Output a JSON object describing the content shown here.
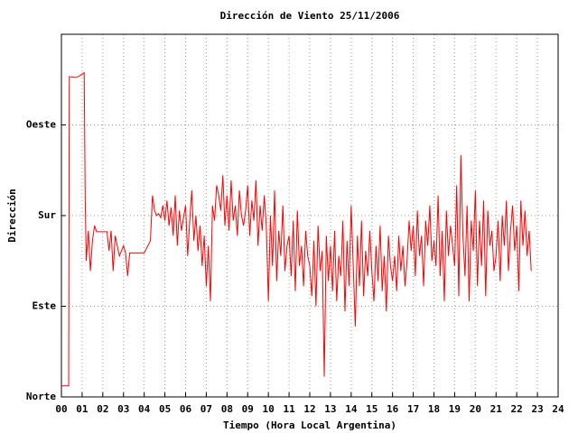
{
  "chart_data": {
    "type": "line",
    "title": "Dirección de Viento 25/11/2006",
    "x_label": "Tiempo (Hora Local Argentina)",
    "y_label": "Dirección",
    "xlim": [
      0,
      24
    ],
    "ylim": [
      0,
      360
    ],
    "grid": true,
    "xticks": [
      {
        "value": 0,
        "label": "00"
      },
      {
        "value": 1,
        "label": "01"
      },
      {
        "value": 2,
        "label": "02"
      },
      {
        "value": 3,
        "label": "03"
      },
      {
        "value": 4,
        "label": "04"
      },
      {
        "value": 5,
        "label": "05"
      },
      {
        "value": 6,
        "label": "06"
      },
      {
        "value": 7,
        "label": "07"
      },
      {
        "value": 8,
        "label": "08"
      },
      {
        "value": 9,
        "label": "09"
      },
      10,
      11,
      12,
      13,
      14,
      15,
      16,
      17,
      18,
      19,
      20,
      21,
      22,
      23,
      24
    ],
    "yticks": [
      {
        "value": 0,
        "label": "Norte"
      },
      {
        "value": 90,
        "label": "Este"
      },
      {
        "value": 180,
        "label": "Sur"
      },
      {
        "value": 270,
        "label": "Oeste"
      }
    ],
    "color": "#ff0000",
    "x": [
      0,
      0.35,
      0.38,
      0.7,
      0.9,
      1.1,
      1.15,
      1.2,
      1.3,
      1.4,
      1.5,
      1.6,
      1.7,
      2.2,
      2.3,
      2.4,
      2.5,
      2.6,
      2.8,
      3.0,
      3.1,
      3.2,
      3.3,
      3.5,
      4.0,
      4.3,
      4.4,
      4.5,
      4.6,
      4.7,
      4.8,
      4.9,
      5.0,
      5.1,
      5.2,
      5.3,
      5.4,
      5.5,
      5.6,
      5.7,
      5.8,
      5.9,
      6.0,
      6.1,
      6.2,
      6.3,
      6.4,
      6.5,
      6.6,
      6.7,
      6.8,
      6.9,
      7.0,
      7.1,
      7.2,
      7.3,
      7.4,
      7.5,
      7.6,
      7.7,
      7.8,
      7.9,
      8.0,
      8.1,
      8.2,
      8.3,
      8.4,
      8.5,
      8.6,
      8.7,
      8.8,
      8.9,
      9.0,
      9.1,
      9.2,
      9.3,
      9.4,
      9.5,
      9.6,
      9.7,
      9.8,
      9.9,
      10.0,
      10.1,
      10.2,
      10.3,
      10.4,
      10.5,
      10.6,
      10.7,
      10.8,
      10.9,
      11.0,
      11.1,
      11.2,
      11.3,
      11.4,
      11.5,
      11.6,
      11.7,
      11.8,
      11.9,
      12.0,
      12.1,
      12.2,
      12.3,
      12.4,
      12.5,
      12.6,
      12.7,
      12.8,
      12.9,
      13.0,
      13.1,
      13.2,
      13.3,
      13.4,
      13.5,
      13.6,
      13.7,
      13.8,
      13.9,
      14.0,
      14.1,
      14.2,
      14.3,
      14.4,
      14.5,
      14.6,
      14.7,
      14.8,
      14.9,
      15.0,
      15.1,
      15.2,
      15.3,
      15.4,
      15.5,
      15.6,
      15.7,
      15.8,
      15.9,
      16.0,
      16.1,
      16.2,
      16.3,
      16.4,
      16.5,
      16.6,
      16.7,
      16.8,
      16.9,
      17.0,
      17.1,
      17.2,
      17.3,
      17.4,
      17.5,
      17.6,
      17.7,
      17.8,
      17.9,
      18.0,
      18.1,
      18.2,
      18.3,
      18.4,
      18.5,
      18.6,
      18.7,
      18.8,
      18.9,
      19.0,
      19.1,
      19.2,
      19.3,
      19.4,
      19.5,
      19.6,
      19.7,
      19.8,
      19.9,
      20.0,
      20.1,
      20.2,
      20.3,
      20.4,
      20.5,
      20.6,
      20.7,
      20.8,
      20.9,
      21.0,
      21.1,
      21.2,
      21.3,
      21.4,
      21.5,
      21.6,
      21.7,
      21.8,
      21.9,
      22.0,
      22.1,
      22.2,
      22.3,
      22.4,
      22.5,
      22.6,
      22.7
    ],
    "values": [
      11,
      11,
      318,
      317,
      319,
      322,
      196,
      135,
      165,
      125,
      155,
      170,
      164,
      164,
      145,
      165,
      125,
      160,
      140,
      150,
      143,
      120,
      143,
      143,
      143,
      155,
      200,
      185,
      180,
      182,
      178,
      190,
      175,
      195,
      170,
      188,
      160,
      200,
      150,
      185,
      165,
      178,
      190,
      140,
      175,
      205,
      155,
      180,
      145,
      170,
      130,
      160,
      110,
      150,
      95,
      190,
      175,
      210,
      200,
      185,
      220,
      170,
      200,
      165,
      215,
      175,
      190,
      160,
      205,
      180,
      170,
      185,
      210,
      160,
      195,
      175,
      215,
      150,
      190,
      165,
      200,
      170,
      95,
      180,
      130,
      205,
      115,
      165,
      140,
      190,
      125,
      150,
      160,
      120,
      175,
      105,
      185,
      130,
      150,
      110,
      165,
      140,
      130,
      100,
      155,
      90,
      170,
      125,
      145,
      20,
      160,
      115,
      150,
      105,
      165,
      95,
      140,
      120,
      175,
      85,
      155,
      110,
      190,
      130,
      70,
      160,
      110,
      175,
      100,
      145,
      120,
      165,
      125,
      95,
      150,
      115,
      170,
      105,
      140,
      85,
      160,
      130,
      115,
      140,
      105,
      160,
      125,
      150,
      110,
      135,
      175,
      145,
      170,
      120,
      185,
      140,
      160,
      110,
      175,
      150,
      190,
      135,
      155,
      130,
      200,
      120,
      165,
      95,
      185,
      140,
      170,
      150,
      130,
      210,
      100,
      240,
      160,
      120,
      190,
      95,
      175,
      145,
      205,
      110,
      175,
      130,
      195,
      100,
      185,
      150,
      165,
      125,
      140,
      175,
      115,
      180,
      150,
      195,
      125,
      165,
      190,
      145,
      170,
      105,
      195,
      150,
      185,
      140,
      165,
      125
    ]
  }
}
